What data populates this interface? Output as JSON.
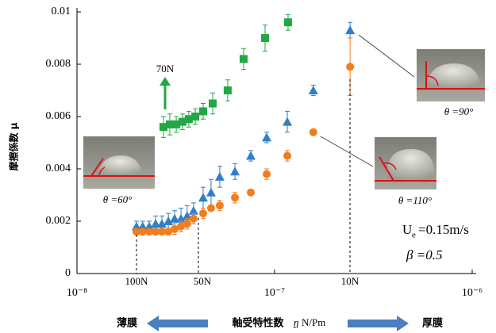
{
  "chart_data": {
    "type": "scatter",
    "y_label": "摩擦係数  μ",
    "x_label": "軸受特性数",
    "x_label_unit_symbol": "η",
    "x_label_unit": "N/Pm",
    "x_left_label": "薄膜",
    "x_right_label": "厚膜",
    "xscale": "log",
    "xlim": [
      1e-08,
      1e-06
    ],
    "xticks": [
      {
        "value": 1e-08,
        "label": "10⁻⁸"
      },
      {
        "value": 1e-07,
        "label": "10⁻⁷"
      },
      {
        "value": 1e-06,
        "label": "10⁻⁶"
      }
    ],
    "ylim": [
      0,
      0.01
    ],
    "yticks": [
      0,
      0.002,
      0.004,
      0.006,
      0.008,
      0.01
    ],
    "grid": false,
    "load_labels": [
      "100N",
      "50N",
      "10N",
      "70N"
    ],
    "angle_labels": [
      "θ =60°",
      "θ =110°",
      "θ =90°"
    ],
    "velocity_symbol": "U",
    "velocity_subscript": "e",
    "velocity_value": "=0.15m/s",
    "beta_label": "β =0.5",
    "series": [
      {
        "marker": "square",
        "color": "#21a845",
        "x": [
          2.74e-08,
          2.95e-08,
          3.18e-08,
          3.42e-08,
          3.68e-08,
          3.97e-08,
          4.35e-08,
          4.86e-08,
          5.79e-08,
          6.97e-08,
          8.95e-08,
          1.17e-07
        ],
        "values": [
          0.0056,
          0.0057,
          0.0057,
          0.0058,
          0.0059,
          0.006,
          0.0062,
          0.0065,
          0.007,
          0.0082,
          0.009,
          0.0096
        ],
        "errors": [
          0.0004,
          0.0004,
          0.0003,
          0.0003,
          0.0003,
          0.0003,
          0.0003,
          0.0004,
          0.0004,
          0.0004,
          0.0005,
          0.0003
        ]
      },
      {
        "marker": "triangle",
        "color": "#2f7fc8",
        "x": [
          2e-08,
          2.15e-08,
          2.32e-08,
          2.5e-08,
          2.69e-08,
          2.9e-08,
          3.12e-08,
          3.36e-08,
          3.61e-08,
          3.89e-08,
          4.35e-08,
          4.77e-08,
          5.28e-08,
          6.3e-08,
          7.58e-08,
          9.12e-08,
          1.16e-07,
          1.57e-07,
          2.41e-07
        ],
        "values": [
          0.0018,
          0.0018,
          0.0018,
          0.0019,
          0.0019,
          0.002,
          0.0021,
          0.0021,
          0.0022,
          0.0024,
          0.0029,
          0.0031,
          0.0037,
          0.0039,
          0.0045,
          0.0052,
          0.0058,
          0.007,
          0.0093
        ],
        "errors": [
          0.0002,
          0.0002,
          0.0002,
          0.0003,
          0.0003,
          0.0003,
          0.0003,
          0.0004,
          0.0004,
          0.0003,
          0.0004,
          0.0005,
          0.0004,
          0.0003,
          0.0002,
          0.0002,
          0.0004,
          0.0002,
          0.0003
        ]
      },
      {
        "marker": "circle",
        "color": "#f07d1e",
        "x": [
          2e-08,
          2.15e-08,
          2.32e-08,
          2.5e-08,
          2.69e-08,
          2.9e-08,
          3.12e-08,
          3.36e-08,
          3.61e-08,
          3.89e-08,
          4.35e-08,
          4.77e-08,
          5.28e-08,
          6.3e-08,
          7.58e-08,
          9.12e-08,
          1.16e-07,
          1.57e-07,
          2.41e-07
        ],
        "values": [
          0.0016,
          0.0016,
          0.0016,
          0.0016,
          0.0016,
          0.0016,
          0.0017,
          0.0018,
          0.0019,
          0.0021,
          0.0023,
          0.0025,
          0.0026,
          0.0029,
          0.0031,
          0.0038,
          0.0045,
          0.0054,
          0.0079
        ],
        "errors": [
          0.0001,
          0.0001,
          0.0001,
          0.0001,
          0.0001,
          0.0001,
          0.0002,
          0.0002,
          0.0002,
          0.0002,
          0.0002,
          0.0001,
          0.0002,
          0.0002,
          0.0001,
          0.0002,
          0.0002,
          0.0001,
          0.0011
        ]
      }
    ]
  }
}
